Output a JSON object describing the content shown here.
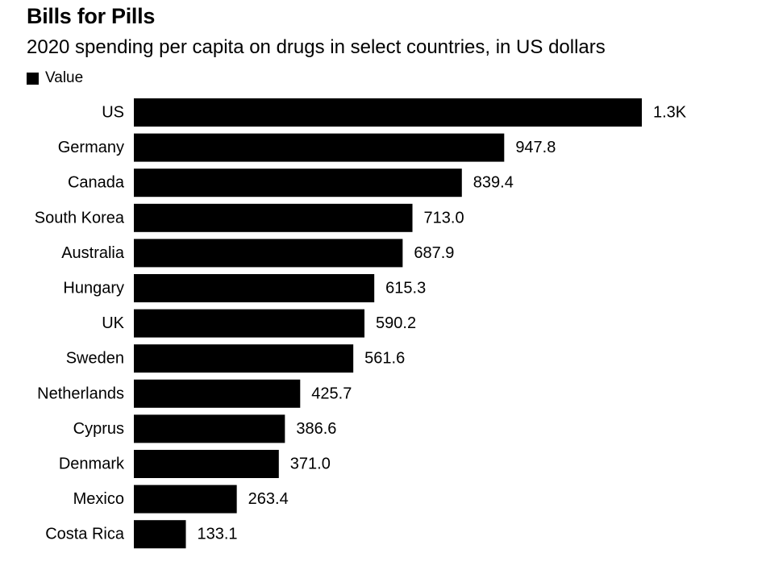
{
  "title": "Bills for Pills",
  "subtitle": "2020 spending per capita on drugs in select countries, in US dollars",
  "legend_label": "Value",
  "colors": {
    "bar": "#000000",
    "text": "#000000",
    "background": "#ffffff"
  },
  "chart_data": {
    "type": "bar",
    "orientation": "horizontal",
    "title": "Bills for Pills",
    "subtitle": "2020 spending per capita on drugs in select countries, in US dollars",
    "categories": [
      "US",
      "Germany",
      "Canada",
      "South Korea",
      "Australia",
      "Hungary",
      "UK",
      "Sweden",
      "Netherlands",
      "Cyprus",
      "Denmark",
      "Mexico",
      "Costa Rica"
    ],
    "values": [
      1300,
      947.8,
      839.4,
      713.0,
      687.9,
      615.3,
      590.2,
      561.6,
      425.7,
      386.6,
      371.0,
      263.4,
      133.1
    ],
    "value_labels": [
      "1.3K",
      "947.8",
      "839.4",
      "713.0",
      "687.9",
      "615.3",
      "590.2",
      "561.6",
      "425.7",
      "386.6",
      "371.0",
      "263.4",
      "133.1"
    ],
    "series": [
      {
        "name": "Value",
        "values": [
          1300,
          947.8,
          839.4,
          713.0,
          687.9,
          615.3,
          590.2,
          561.6,
          425.7,
          386.6,
          371.0,
          263.4,
          133.1
        ]
      }
    ],
    "xlabel": "",
    "ylabel": "",
    "xlim": [
      0,
      1300
    ],
    "grid": false,
    "legend": "top-left"
  }
}
